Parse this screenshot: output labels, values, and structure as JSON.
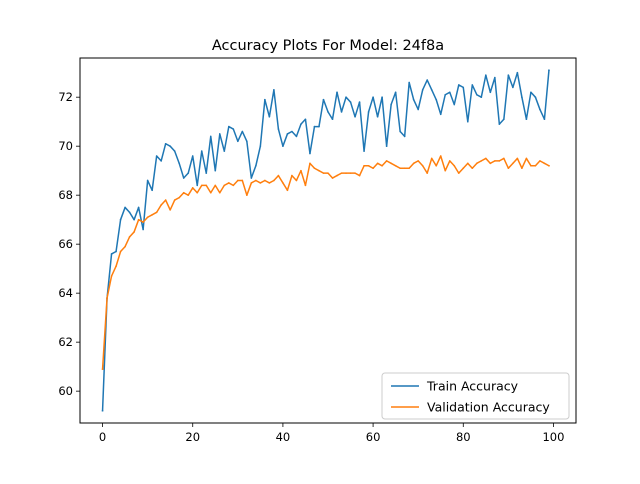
{
  "chart_data": {
    "type": "line",
    "title": "Accuracy Plots For Model: 24f8a",
    "xlabel": "",
    "ylabel": "",
    "xlim": [
      -5,
      105
    ],
    "ylim": [
      58.7,
      73.6
    ],
    "xticks": [
      0,
      20,
      40,
      60,
      80,
      100
    ],
    "yticks": [
      60,
      62,
      64,
      66,
      68,
      70,
      72
    ],
    "grid": false,
    "legend_position": "lower-right",
    "x": [
      0,
      1,
      2,
      3,
      4,
      5,
      6,
      7,
      8,
      9,
      10,
      11,
      12,
      13,
      14,
      15,
      16,
      17,
      18,
      19,
      20,
      21,
      22,
      23,
      24,
      25,
      26,
      27,
      28,
      29,
      30,
      31,
      32,
      33,
      34,
      35,
      36,
      37,
      38,
      39,
      40,
      41,
      42,
      43,
      44,
      45,
      46,
      47,
      48,
      49,
      50,
      51,
      52,
      53,
      54,
      55,
      56,
      57,
      58,
      59,
      60,
      61,
      62,
      63,
      64,
      65,
      66,
      67,
      68,
      69,
      70,
      71,
      72,
      73,
      74,
      75,
      76,
      77,
      78,
      79,
      80,
      81,
      82,
      83,
      84,
      85,
      86,
      87,
      88,
      89,
      90,
      91,
      92,
      93,
      94,
      95,
      96,
      97,
      98,
      99
    ],
    "series": [
      {
        "name": "Train Accuracy",
        "color": "#1f77b4",
        "values": [
          59.2,
          63.8,
          65.6,
          65.7,
          67.0,
          67.5,
          67.3,
          67.0,
          67.5,
          66.6,
          68.6,
          68.2,
          69.6,
          69.4,
          70.1,
          70.0,
          69.8,
          69.3,
          68.7,
          68.9,
          69.6,
          68.4,
          69.8,
          68.9,
          70.4,
          69.0,
          70.5,
          69.8,
          70.8,
          70.7,
          70.2,
          70.6,
          70.2,
          68.7,
          69.2,
          70.0,
          71.9,
          71.2,
          72.3,
          70.7,
          70.0,
          70.5,
          70.6,
          70.4,
          70.9,
          71.1,
          69.7,
          70.8,
          70.8,
          71.9,
          71.4,
          71.1,
          72.2,
          71.4,
          72.0,
          71.8,
          71.2,
          71.8,
          69.8,
          71.4,
          72.0,
          71.2,
          72.0,
          70.0,
          71.7,
          72.2,
          70.6,
          70.4,
          72.6,
          71.9,
          71.5,
          72.3,
          72.7,
          72.3,
          71.9,
          71.3,
          72.1,
          72.2,
          71.7,
          72.5,
          72.4,
          71.0,
          72.5,
          72.1,
          72.0,
          72.9,
          72.2,
          72.8,
          70.9,
          71.1,
          72.9,
          72.4,
          73.0,
          72.0,
          71.1,
          72.2,
          72.0,
          71.5,
          71.1,
          73.1
        ]
      },
      {
        "name": "Validation Accuracy",
        "color": "#ff7f0e",
        "values": [
          60.9,
          63.8,
          64.7,
          65.1,
          65.7,
          65.9,
          66.3,
          66.5,
          67.0,
          66.9,
          67.1,
          67.2,
          67.3,
          67.6,
          67.8,
          67.4,
          67.8,
          67.9,
          68.1,
          68.0,
          68.3,
          68.1,
          68.4,
          68.4,
          68.1,
          68.4,
          68.1,
          68.4,
          68.5,
          68.4,
          68.6,
          68.6,
          68.0,
          68.5,
          68.6,
          68.5,
          68.6,
          68.5,
          68.6,
          68.8,
          68.5,
          68.2,
          68.8,
          68.6,
          69.0,
          68.4,
          69.3,
          69.1,
          69.0,
          68.9,
          68.9,
          68.7,
          68.8,
          68.9,
          68.9,
          68.9,
          68.9,
          68.8,
          69.2,
          69.2,
          69.1,
          69.3,
          69.2,
          69.4,
          69.3,
          69.2,
          69.1,
          69.1,
          69.1,
          69.3,
          69.4,
          69.2,
          68.9,
          69.5,
          69.2,
          69.6,
          69.0,
          69.4,
          69.2,
          68.9,
          69.1,
          69.3,
          69.1,
          69.3,
          69.4,
          69.5,
          69.3,
          69.4,
          69.4,
          69.5,
          69.1,
          69.3,
          69.5,
          69.1,
          69.5,
          69.2,
          69.2,
          69.4,
          69.3,
          69.2
        ]
      }
    ]
  }
}
